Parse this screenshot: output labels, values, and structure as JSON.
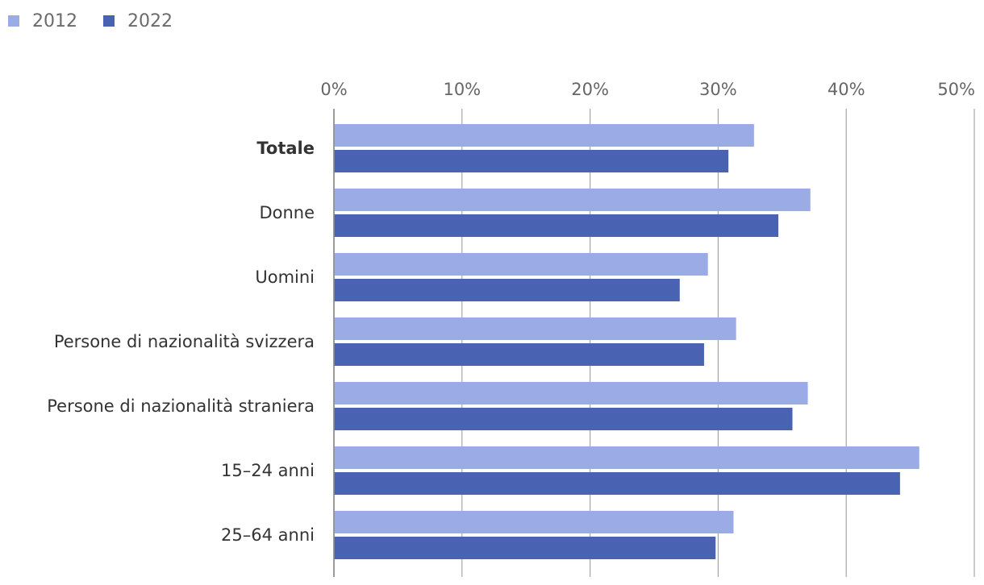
{
  "chart_data": {
    "type": "bar",
    "orientation": "horizontal",
    "title": "",
    "xlabel": "",
    "ylabel": "",
    "xlim": [
      0,
      50
    ],
    "x_ticks": [
      "0%",
      "10%",
      "20%",
      "30%",
      "40%",
      "50%"
    ],
    "x_tick_values": [
      0,
      10,
      20,
      30,
      40,
      50
    ],
    "grid": true,
    "legend_position": "top-left",
    "categories": [
      "Totale",
      "Donne",
      "Uomini",
      "Persone di nazionalità svizzera",
      "Persone di nazionalità straniera",
      "15–24 anni",
      "25–64 anni"
    ],
    "bold_category": "Totale",
    "series": [
      {
        "name": "2012",
        "color": "#9babe6",
        "values": [
          32.8,
          37.2,
          29.2,
          31.4,
          37.0,
          45.7,
          31.2
        ]
      },
      {
        "name": "2022",
        "color": "#4a62b2",
        "values": [
          30.8,
          34.7,
          27.0,
          28.9,
          35.8,
          44.2,
          29.8
        ]
      }
    ]
  }
}
